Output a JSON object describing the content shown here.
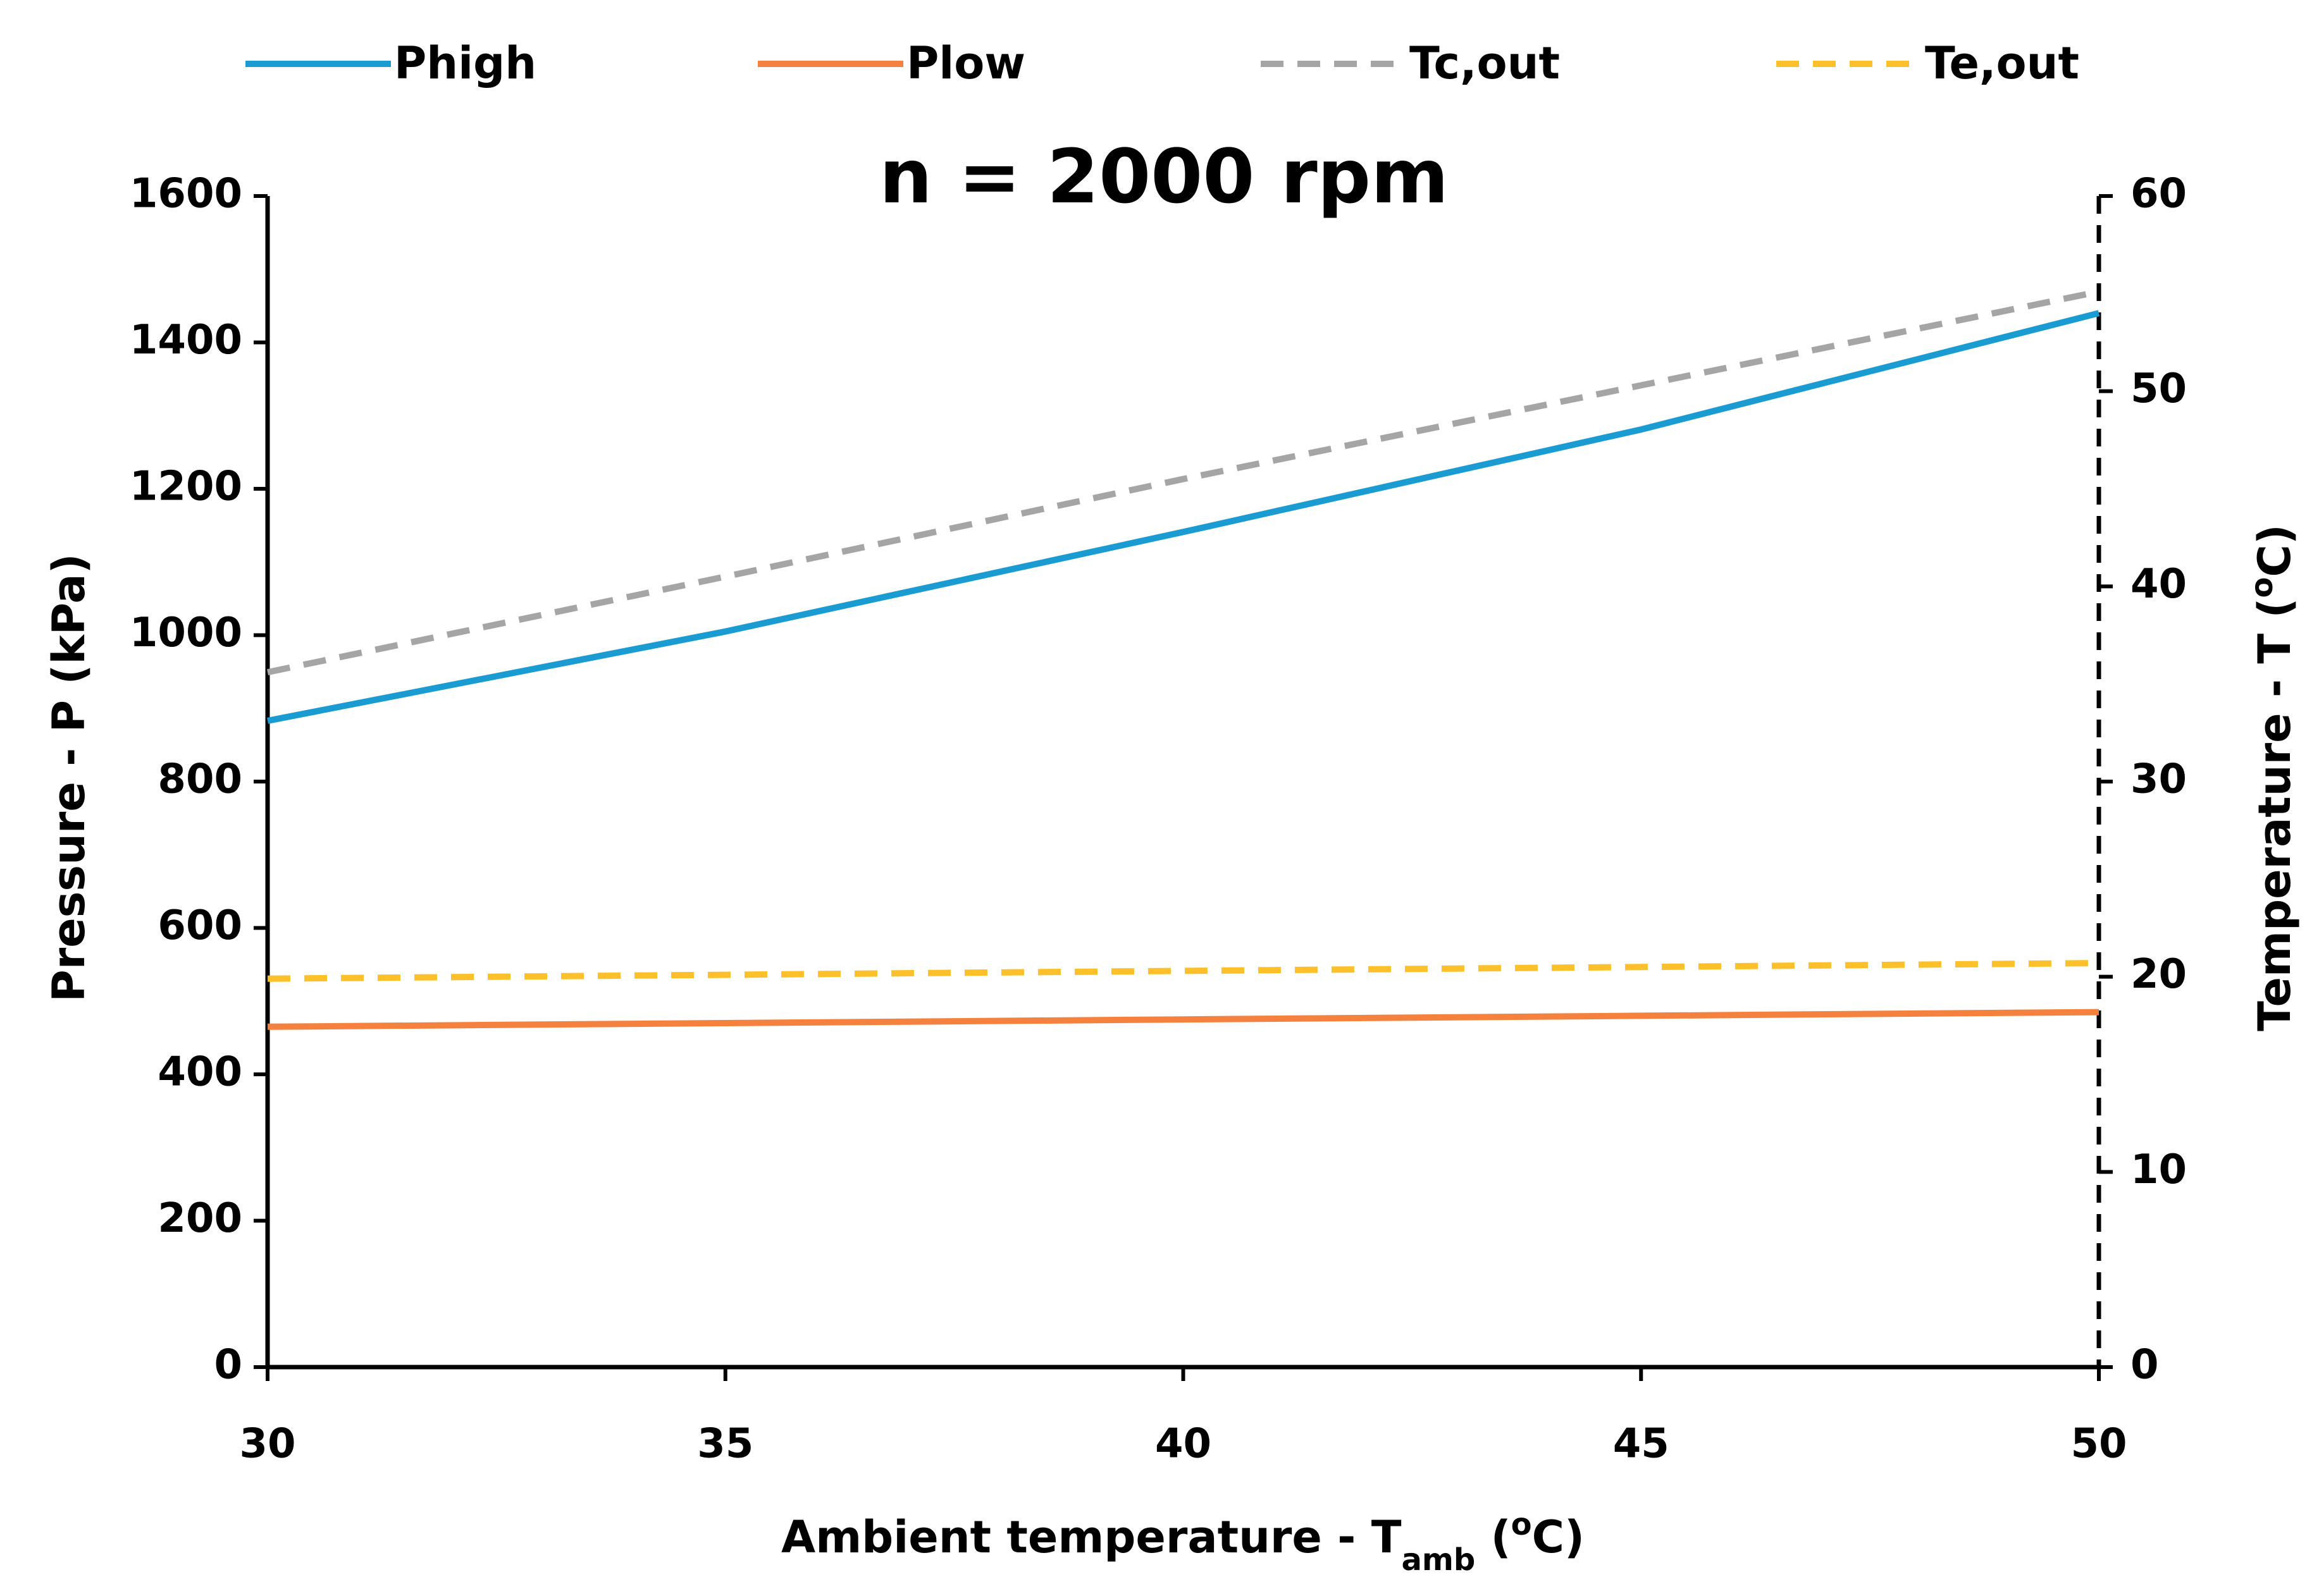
{
  "chart_data": {
    "type": "line",
    "title": "n = 2000 rpm",
    "x_label_parts": [
      "Ambient temperature - T",
      "amb",
      " (",
      "o",
      "C)"
    ],
    "y_label": "Pressure - P (kPa)",
    "y2_label_parts": [
      "Temperature - T (",
      "o",
      "C)"
    ],
    "x": [
      30,
      35,
      40,
      45,
      50
    ],
    "xlim": [
      30,
      50
    ],
    "xticks": [
      30,
      35,
      40,
      45,
      50
    ],
    "ylim": [
      0,
      1600
    ],
    "yticks": [
      0,
      200,
      400,
      600,
      800,
      1000,
      1200,
      1400,
      1600
    ],
    "y2lim": [
      0,
      60
    ],
    "y2ticks": [
      0,
      10,
      20,
      30,
      40,
      50,
      60
    ],
    "series": [
      {
        "name": "Phigh",
        "color": "#1a9bd1",
        "dash": false,
        "values": [
          883,
          1005,
          1141,
          1281,
          1440
        ]
      },
      {
        "name": "Plow",
        "color": "#f5813f",
        "dash": false,
        "values": [
          465,
          470,
          475,
          480,
          485
        ]
      },
      {
        "name": "Tc,out",
        "color": "#a5a5a5",
        "dash": true,
        "axis": "y2",
        "values": [
          35.6,
          40.5,
          45.5,
          50.3,
          55.1
        ]
      },
      {
        "name": "Te,out",
        "color": "#fcc02a",
        "dash": true,
        "axis": "y2",
        "values": [
          19.9,
          20.1,
          20.3,
          20.5,
          20.7
        ]
      }
    ]
  }
}
